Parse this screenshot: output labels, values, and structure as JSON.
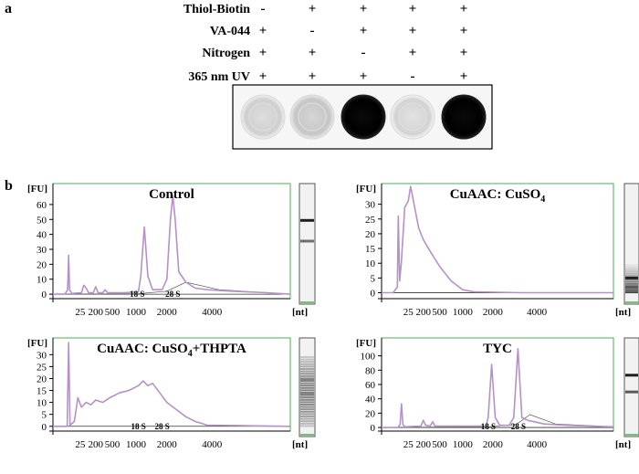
{
  "panel_a": {
    "label": "a",
    "conditions": [
      {
        "name": "Thiol-Biotin",
        "marks": [
          "-",
          "+",
          "+",
          "+",
          "+"
        ]
      },
      {
        "name": "VA-044",
        "marks": [
          "+",
          "-",
          "+",
          "+",
          "+"
        ]
      },
      {
        "name": "Nitrogen",
        "marks": [
          "+",
          "+",
          "-",
          "+",
          "+"
        ]
      },
      {
        "name": "365 nm UV",
        "marks": [
          "+",
          "+",
          "+",
          "-",
          "+"
        ]
      }
    ],
    "dots": [
      {
        "intensity": 0.06
      },
      {
        "intensity": 0.1
      },
      {
        "intensity": 1.0
      },
      {
        "intensity": 0.04
      },
      {
        "intensity": 1.0
      }
    ]
  },
  "panel_b_label": "b",
  "chart_data": [
    {
      "type": "line",
      "title": "Control",
      "title_sub": "",
      "title_suffix": "",
      "ylabel": "[FU]",
      "xlabel": "[nt]",
      "yticks": [
        0,
        10,
        20,
        30,
        40,
        50,
        60
      ],
      "xticks": [
        "25",
        "200",
        "500",
        "1000",
        "2000",
        "4000"
      ],
      "peak_labels": [
        {
          "text": "18 S",
          "t": 35.5
        },
        {
          "text": "28 S",
          "t": 50.5
        }
      ],
      "ylim": [
        -3,
        74
      ],
      "series": [
        {
          "points": [
            [
              0,
              0
            ],
            [
              5,
              0
            ],
            [
              6.2,
              3
            ],
            [
              6.6,
              26
            ],
            [
              7,
              3
            ],
            [
              8,
              0.5
            ],
            [
              12,
              1
            ],
            [
              13,
              6
            ],
            [
              14,
              4
            ],
            [
              15,
              1
            ],
            [
              17,
              1
            ],
            [
              18,
              5
            ],
            [
              19,
              1
            ],
            [
              21,
              1
            ],
            [
              22,
              3
            ],
            [
              23,
              1
            ],
            [
              30,
              1
            ],
            [
              36,
              1.5
            ],
            [
              37,
              12
            ],
            [
              38.5,
              45
            ],
            [
              40,
              12
            ],
            [
              42,
              3
            ],
            [
              46,
              3
            ],
            [
              48,
              10
            ],
            [
              49.5,
              50
            ],
            [
              50.5,
              66
            ],
            [
              51.5,
              50
            ],
            [
              53,
              15
            ],
            [
              56,
              8
            ],
            [
              60,
              4
            ],
            [
              65,
              3
            ],
            [
              75,
              2
            ],
            [
              90,
              1
            ],
            [
              100,
              0
            ]
          ]
        }
      ],
      "baseline": [
        [
          0,
          0
        ],
        [
          36,
          0.3
        ],
        [
          48,
          2
        ],
        [
          56,
          8
        ],
        [
          70,
          3
        ],
        [
          100,
          0
        ]
      ],
      "gel_bands": [
        {
          "pos": 0.32,
          "strength": 0.9
        },
        {
          "pos": 0.5,
          "strength": 0.5
        }
      ]
    },
    {
      "type": "line",
      "title": "CuAAC: CuSO",
      "title_sub": "4",
      "title_suffix": "",
      "ylabel": "[FU]",
      "xlabel": "[nt]",
      "yticks": [
        0,
        5,
        10,
        15,
        20,
        25,
        30
      ],
      "xticks": [
        "25",
        "200",
        "500",
        "1000",
        "2000",
        "4000"
      ],
      "peak_labels": [],
      "ylim": [
        -2,
        37
      ],
      "series": [
        {
          "points": [
            [
              0,
              0
            ],
            [
              5,
              0
            ],
            [
              6.8,
              2
            ],
            [
              7.2,
              26
            ],
            [
              7.8,
              4
            ],
            [
              8.5,
              10
            ],
            [
              10,
              29
            ],
            [
              11.5,
              31
            ],
            [
              12.5,
              36
            ],
            [
              14,
              30
            ],
            [
              16,
              22
            ],
            [
              18,
              18
            ],
            [
              21,
              14
            ],
            [
              25,
              9
            ],
            [
              30,
              4
            ],
            [
              35,
              1
            ],
            [
              40,
              0.3
            ],
            [
              60,
              0
            ],
            [
              100,
              0
            ]
          ]
        }
      ],
      "baseline": [],
      "gel_bands": [
        {
          "pos": 0.82,
          "strength": 0.9
        },
        {
          "pos": 0.9,
          "strength": 0.6
        }
      ]
    },
    {
      "type": "line",
      "title": "CuAAC: CuSO",
      "title_sub": "4",
      "title_suffix": "+THPTA",
      "ylabel": "[FU]",
      "xlabel": "[nt]",
      "yticks": [
        0,
        5,
        10,
        15,
        20,
        25,
        30
      ],
      "xticks": [
        "25",
        "200",
        "500",
        "1000",
        "2000",
        "4000"
      ],
      "peak_labels": [
        {
          "text": "18 S",
          "t": 36
        },
        {
          "text": "28 S",
          "t": 46
        }
      ],
      "ylim": [
        -2,
        37
      ],
      "series": [
        {
          "points": [
            [
              0,
              0
            ],
            [
              6,
              0
            ],
            [
              6.6,
              35
            ],
            [
              7.2,
              0.5
            ],
            [
              9,
              2
            ],
            [
              10.5,
              12
            ],
            [
              12,
              8
            ],
            [
              14,
              10
            ],
            [
              16,
              9
            ],
            [
              18,
              11
            ],
            [
              21,
              10
            ],
            [
              24,
              12
            ],
            [
              28,
              14
            ],
            [
              32,
              15
            ],
            [
              36,
              17
            ],
            [
              38,
              19
            ],
            [
              40,
              17
            ],
            [
              42,
              18
            ],
            [
              45,
              14
            ],
            [
              48,
              10
            ],
            [
              52,
              7
            ],
            [
              56,
              4
            ],
            [
              60,
              2
            ],
            [
              65,
              0.5
            ],
            [
              100,
              0
            ]
          ]
        }
      ],
      "baseline": [],
      "gel_bands": [
        {
          "pos": 0.45,
          "strength": 0.4
        },
        {
          "pos": 0.6,
          "strength": 0.4
        }
      ]
    },
    {
      "type": "line",
      "title": "TYC",
      "title_sub": "",
      "title_suffix": "",
      "ylabel": "[FU]",
      "xlabel": "[nt]",
      "yticks": [
        0,
        20,
        40,
        60,
        80,
        100
      ],
      "xticks": [
        "25",
        "200",
        "500",
        "1000",
        "2000",
        "4000"
      ],
      "peak_labels": [
        {
          "text": "18 S",
          "t": 46
        },
        {
          "text": "28 S",
          "t": 59
        }
      ],
      "ylim": [
        -5,
        125
      ],
      "series": [
        {
          "points": [
            [
              0,
              0
            ],
            [
              7,
              0
            ],
            [
              8,
              4
            ],
            [
              8.6,
              33
            ],
            [
              9.2,
              4
            ],
            [
              10,
              1
            ],
            [
              17,
              2
            ],
            [
              18,
              10
            ],
            [
              19,
              3
            ],
            [
              21,
              2
            ],
            [
              22,
              8
            ],
            [
              23,
              2
            ],
            [
              45,
              2
            ],
            [
              46,
              14
            ],
            [
              47.5,
              88
            ],
            [
              49,
              14
            ],
            [
              51,
              3
            ],
            [
              55,
              3
            ],
            [
              57,
              14
            ],
            [
              58.8,
              110
            ],
            [
              60.5,
              14
            ],
            [
              63,
              10
            ],
            [
              70,
              5
            ],
            [
              80,
              3
            ],
            [
              100,
              1
            ]
          ]
        }
      ],
      "baseline": [
        [
          0,
          0
        ],
        [
          46,
          1
        ],
        [
          58,
          4
        ],
        [
          64,
          18
        ],
        [
          75,
          5
        ],
        [
          100,
          1
        ]
      ],
      "gel_bands": [
        {
          "pos": 0.4,
          "strength": 0.9
        },
        {
          "pos": 0.58,
          "strength": 0.6
        }
      ]
    }
  ]
}
